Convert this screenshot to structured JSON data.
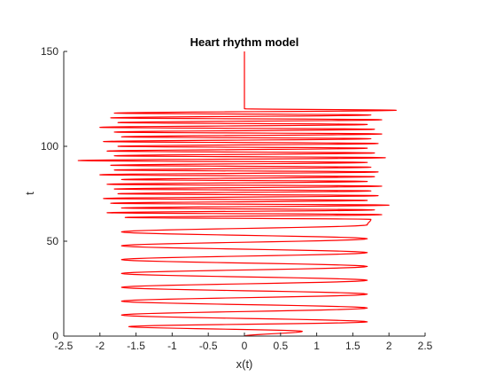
{
  "chart_data": {
    "type": "line",
    "title": "Heart rhythm model",
    "xlabel": "x(t)",
    "ylabel": "t",
    "xlim": [
      -2.5,
      2.5
    ],
    "ylim": [
      0,
      150
    ],
    "xticks": [
      -2.5,
      -2,
      -1.5,
      -1,
      -0.5,
      0,
      0.5,
      1,
      1.5,
      2,
      2.5
    ],
    "xtick_labels": [
      "-2.5",
      "-2",
      "-1.5",
      "-1",
      "-0.5",
      "0",
      "0.5",
      "1",
      "1.5",
      "2",
      "2.5"
    ],
    "yticks": [
      0,
      50,
      100,
      150
    ],
    "ytick_labels": [
      "0",
      "50",
      "100",
      "150"
    ],
    "grid": false,
    "legend": "none",
    "series": [
      {
        "color": "#ff0000",
        "segments": [
          {
            "kind": "regular-oscillation",
            "t_start": 0,
            "t_end": 60,
            "period": 7.3,
            "x_max": 1.7,
            "x_min": -1.7,
            "initial": {
              "t": 0,
              "x": 0
            },
            "first_peak": {
              "t": 2.5,
              "x": 0.8
            },
            "first_trough": {
              "t": 5,
              "x": -1.6
            },
            "peak_times": [
              2.5,
              7.5,
              14.8,
              22.1,
              29.4,
              36.7,
              44.0,
              51.3,
              58.6
            ],
            "trough_times": [
              5,
              11.1,
              18.4,
              25.7,
              33.0,
              40.3,
              47.6,
              54.9
            ]
          },
          {
            "kind": "irregular-oscillation",
            "t_start": 60,
            "t_end": 120,
            "x_max": 2.1,
            "x_min": -2.3,
            "extremes": [
              {
                "t": 61.5,
                "x": 1.75
              },
              {
                "t": 62.5,
                "x": -1.65
              },
              {
                "t": 64.0,
                "x": 1.9
              },
              {
                "t": 65.0,
                "x": -1.9
              },
              {
                "t": 66.5,
                "x": 1.8
              },
              {
                "t": 67.5,
                "x": -1.7
              },
              {
                "t": 69.0,
                "x": 2.0
              },
              {
                "t": 70.0,
                "x": -1.85
              },
              {
                "t": 71.5,
                "x": 1.7
              },
              {
                "t": 72.5,
                "x": -1.95
              },
              {
                "t": 74.0,
                "x": 1.85
              },
              {
                "t": 75.0,
                "x": -1.75
              },
              {
                "t": 76.5,
                "x": 1.75
              },
              {
                "t": 77.5,
                "x": -1.8
              },
              {
                "t": 79.0,
                "x": 1.9
              },
              {
                "t": 80.0,
                "x": -1.9
              },
              {
                "t": 81.5,
                "x": 1.7
              },
              {
                "t": 82.5,
                "x": -1.7
              },
              {
                "t": 84.0,
                "x": 1.8
              },
              {
                "t": 85.0,
                "x": -2.0
              },
              {
                "t": 86.5,
                "x": 1.85
              },
              {
                "t": 87.5,
                "x": -1.8
              },
              {
                "t": 89.0,
                "x": 1.75
              },
              {
                "t": 90.0,
                "x": -1.85
              },
              {
                "t": 91.5,
                "x": 1.7
              },
              {
                "t": 92.5,
                "x": -2.3
              },
              {
                "t": 94.0,
                "x": 1.95
              },
              {
                "t": 95.0,
                "x": -1.8
              },
              {
                "t": 96.5,
                "x": 1.8
              },
              {
                "t": 97.5,
                "x": -1.9
              },
              {
                "t": 99.0,
                "x": 1.7
              },
              {
                "t": 100.0,
                "x": -1.75
              },
              {
                "t": 101.5,
                "x": 1.85
              },
              {
                "t": 102.5,
                "x": -1.95
              },
              {
                "t": 104.0,
                "x": 1.75
              },
              {
                "t": 105.0,
                "x": -1.7
              },
              {
                "t": 106.5,
                "x": 1.9
              },
              {
                "t": 107.5,
                "x": -1.8
              },
              {
                "t": 109.0,
                "x": 1.8
              },
              {
                "t": 110.0,
                "x": -2.0
              },
              {
                "t": 111.5,
                "x": 1.7
              },
              {
                "t": 112.5,
                "x": -1.75
              },
              {
                "t": 114.0,
                "x": 1.9
              },
              {
                "t": 115.0,
                "x": -1.85
              },
              {
                "t": 116.5,
                "x": 1.75
              },
              {
                "t": 117.5,
                "x": -1.8
              },
              {
                "t": 119.0,
                "x": 2.1
              },
              {
                "t": 119.8,
                "x": 0
              }
            ]
          },
          {
            "kind": "flat-line",
            "x": 0,
            "t_start": 120,
            "t_end": 150
          }
        ]
      }
    ]
  }
}
